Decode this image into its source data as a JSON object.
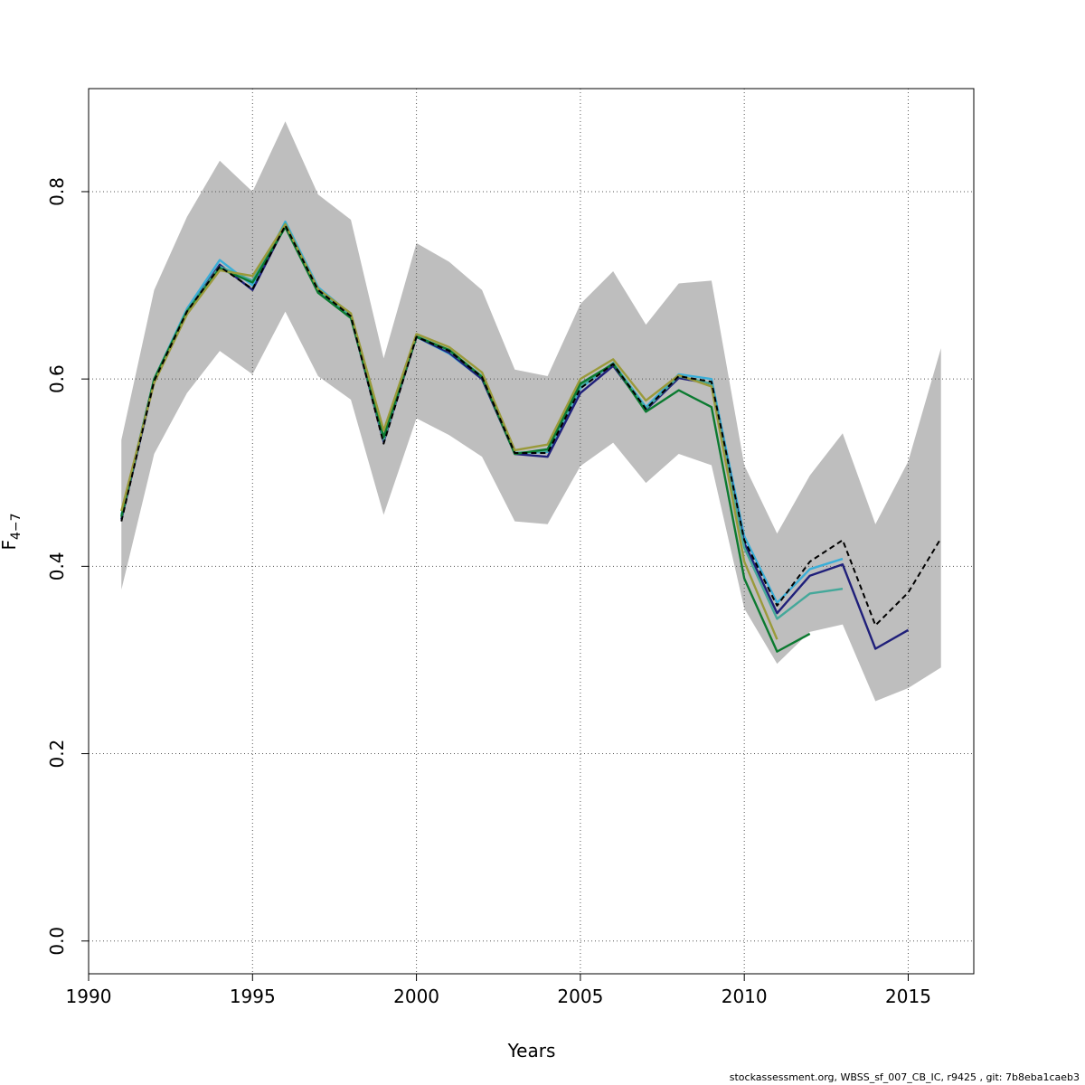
{
  "chart_data": {
    "type": "line",
    "title": "",
    "xlabel": "Years",
    "ylabel": {
      "base": "F",
      "sub": "4−7"
    },
    "xlim": [
      1990,
      2017
    ],
    "ylim": [
      -0.035,
      0.91
    ],
    "xticks": [
      1990,
      1995,
      2000,
      2005,
      2010,
      2015
    ],
    "yticks": [
      0.0,
      0.2,
      0.4,
      0.6,
      0.8
    ],
    "grid": true,
    "band": {
      "x": [
        1991,
        1992,
        1993,
        1994,
        1995,
        1996,
        1997,
        1998,
        1999,
        2000,
        2001,
        2002,
        2003,
        2004,
        2005,
        2006,
        2007,
        2008,
        2009,
        2010,
        2011,
        2012,
        2013,
        2014,
        2015,
        2016
      ],
      "lower": [
        0.375,
        0.52,
        0.585,
        0.63,
        0.605,
        0.672,
        0.603,
        0.578,
        0.455,
        0.558,
        0.54,
        0.517,
        0.448,
        0.445,
        0.507,
        0.532,
        0.489,
        0.52,
        0.508,
        0.355,
        0.296,
        0.33,
        0.338,
        0.256,
        0.27,
        0.292
      ],
      "upper": [
        0.535,
        0.695,
        0.773,
        0.833,
        0.8,
        0.875,
        0.797,
        0.77,
        0.622,
        0.745,
        0.725,
        0.695,
        0.61,
        0.603,
        0.68,
        0.715,
        0.658,
        0.702,
        0.705,
        0.508,
        0.435,
        0.497,
        0.542,
        0.445,
        0.512,
        0.633
      ]
    },
    "series": [
      {
        "color": "#3aaed8",
        "dashed": false,
        "x": [
          1991,
          1992,
          1993,
          1994,
          1995,
          1996,
          1997,
          1998,
          1999,
          2000,
          2001,
          2002,
          2003,
          2004,
          2005,
          2006,
          2007,
          2008,
          2009,
          2010,
          2011,
          2012,
          2013
        ],
        "y": [
          0.455,
          0.6,
          0.675,
          0.727,
          0.7,
          0.768,
          0.698,
          0.669,
          0.537,
          0.645,
          0.627,
          0.6,
          0.521,
          0.522,
          0.59,
          0.617,
          0.57,
          0.605,
          0.6,
          0.432,
          0.361,
          0.397,
          0.408
        ]
      },
      {
        "color": "#1f1f7a",
        "dashed": false,
        "x": [
          1991,
          1992,
          1993,
          1994,
          1995,
          1996,
          1997,
          1998,
          1999,
          2000,
          2001,
          2002,
          2003,
          2004,
          2005,
          2006,
          2007,
          2008,
          2009,
          2010,
          2011,
          2012,
          2013,
          2014,
          2015
        ],
        "y": [
          0.45,
          0.598,
          0.672,
          0.722,
          0.695,
          0.764,
          0.694,
          0.666,
          0.533,
          0.645,
          0.628,
          0.6,
          0.52,
          0.517,
          0.585,
          0.614,
          0.567,
          0.601,
          0.595,
          0.425,
          0.35,
          0.39,
          0.402,
          0.312,
          0.332
        ]
      },
      {
        "color": "#44a89a",
        "dashed": false,
        "x": [
          1991,
          1992,
          1993,
          1994,
          1995,
          1996,
          1997,
          1998,
          1999,
          2000,
          2001,
          2002,
          2003,
          2004,
          2005,
          2006,
          2007,
          2008,
          2009,
          2010,
          2011,
          2012,
          2013
        ],
        "y": [
          0.452,
          0.6,
          0.673,
          0.72,
          0.705,
          0.766,
          0.695,
          0.667,
          0.535,
          0.646,
          0.63,
          0.603,
          0.521,
          0.523,
          0.592,
          0.617,
          0.568,
          0.603,
          0.595,
          0.42,
          0.344,
          0.371,
          0.376
        ]
      },
      {
        "color": "#0b7a30",
        "dashed": false,
        "x": [
          1991,
          1992,
          1993,
          1994,
          1995,
          1996,
          1997,
          1998,
          1999,
          2000,
          2001,
          2002,
          2003,
          2004,
          2005,
          2006,
          2007,
          2008,
          2009,
          2010,
          2011,
          2012
        ],
        "y": [
          0.453,
          0.6,
          0.672,
          0.718,
          0.703,
          0.762,
          0.692,
          0.665,
          0.538,
          0.645,
          0.631,
          0.602,
          0.52,
          0.525,
          0.595,
          0.616,
          0.565,
          0.588,
          0.57,
          0.387,
          0.309,
          0.328
        ]
      },
      {
        "color": "#9a9a3a",
        "dashed": false,
        "x": [
          1991,
          1992,
          1993,
          1994,
          1995,
          1996,
          1997,
          1998,
          1999,
          2000,
          2001,
          2002,
          2003,
          2004,
          2005,
          2006,
          2007,
          2008,
          2009,
          2010,
          2011
        ],
        "y": [
          0.459,
          0.596,
          0.669,
          0.716,
          0.71,
          0.765,
          0.696,
          0.67,
          0.545,
          0.648,
          0.634,
          0.607,
          0.524,
          0.53,
          0.6,
          0.621,
          0.577,
          0.604,
          0.592,
          0.405,
          0.322
        ]
      },
      {
        "color": "#000000",
        "dashed": true,
        "x": [
          1991,
          1992,
          1993,
          1994,
          1995,
          1996,
          1997,
          1998,
          1999,
          2000,
          2001,
          2002,
          2003,
          2004,
          2005,
          2006,
          2007,
          2008,
          2009,
          2010,
          2011,
          2012,
          2013,
          2014,
          2015,
          2016
        ],
        "y": [
          0.448,
          0.598,
          0.672,
          0.72,
          0.696,
          0.764,
          0.695,
          0.667,
          0.531,
          0.645,
          0.63,
          0.602,
          0.521,
          0.521,
          0.59,
          0.616,
          0.568,
          0.603,
          0.597,
          0.428,
          0.358,
          0.405,
          0.428,
          0.337,
          0.372,
          0.43
        ]
      }
    ]
  },
  "footer": "stockassessment.org, WBSS_sf_007_CB_IC, r9425 , git: 7b8eba1caeb3"
}
